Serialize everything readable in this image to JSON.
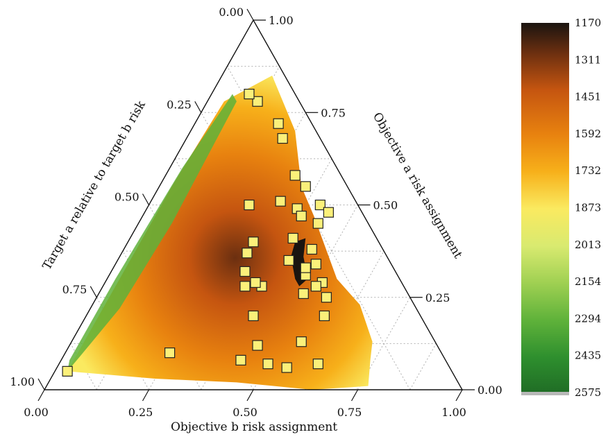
{
  "chart_data": {
    "type": "ternary-contour",
    "title": "",
    "axes": {
      "bottom": {
        "label": "Objective b risk assignment",
        "ticks": [
          "0.00",
          "0.25",
          "0.50",
          "0.75",
          "1.00"
        ]
      },
      "right": {
        "label": "Objective a risk assignment",
        "ticks": [
          "0.00",
          "0.25",
          "0.50",
          "0.75",
          "1.00"
        ]
      },
      "left": {
        "label": "Target a relative to target b risk",
        "ticks": [
          "0.00",
          "0.25",
          "0.50",
          "0.75",
          "1.00"
        ]
      }
    },
    "colorbar": {
      "ticks": [
        "1170",
        "1311",
        "1451",
        "1592",
        "1732",
        "1873",
        "2013",
        "2154",
        "2294",
        "2435",
        "2575"
      ],
      "range": [
        1170,
        2575
      ],
      "colors": [
        "#1a1410",
        "#6b2f10",
        "#c55510",
        "#e8820f",
        "#f7b01a",
        "#faea60",
        "#d9ea70",
        "#9fd052",
        "#5fb23a",
        "#2e8f2e",
        "#1f6b25"
      ]
    },
    "grid": true,
    "points_barycentric_ab": [
      [
        0.12,
        0.78
      ],
      [
        0.09,
        0.8
      ],
      [
        0.2,
        0.72
      ],
      [
        0.23,
        0.68
      ],
      [
        0.31,
        0.58
      ],
      [
        0.35,
        0.55
      ],
      [
        0.41,
        0.5
      ],
      [
        0.24,
        0.5
      ],
      [
        0.31,
        0.51
      ],
      [
        0.36,
        0.49
      ],
      [
        0.41,
        0.35
      ],
      [
        0.48,
        0.34
      ],
      [
        0.47,
        0.31
      ],
      [
        0.46,
        0.33
      ],
      [
        0.52,
        0.29
      ],
      [
        0.51,
        0.28
      ],
      [
        0.55,
        0.25
      ],
      [
        0.57,
        0.2
      ],
      [
        0.49,
        0.26
      ],
      [
        0.55,
        0.13
      ],
      [
        0.39,
        0.41
      ],
      [
        0.45,
        0.38
      ],
      [
        0.43,
        0.45
      ],
      [
        0.44,
        0.48
      ],
      [
        0.38,
        0.47
      ],
      [
        0.3,
        0.4
      ],
      [
        0.3,
        0.37
      ],
      [
        0.38,
        0.28
      ],
      [
        0.25,
        0.1
      ],
      [
        0.32,
        0.32
      ],
      [
        0.34,
        0.28
      ],
      [
        0.36,
        0.29
      ],
      [
        0.4,
        0.2
      ],
      [
        0.43,
        0.08
      ],
      [
        0.45,
        0.12
      ],
      [
        0.5,
        0.07
      ],
      [
        0.55,
        0.06
      ],
      [
        0.62,
        0.07
      ],
      [
        0.03,
        0.05
      ]
    ]
  }
}
